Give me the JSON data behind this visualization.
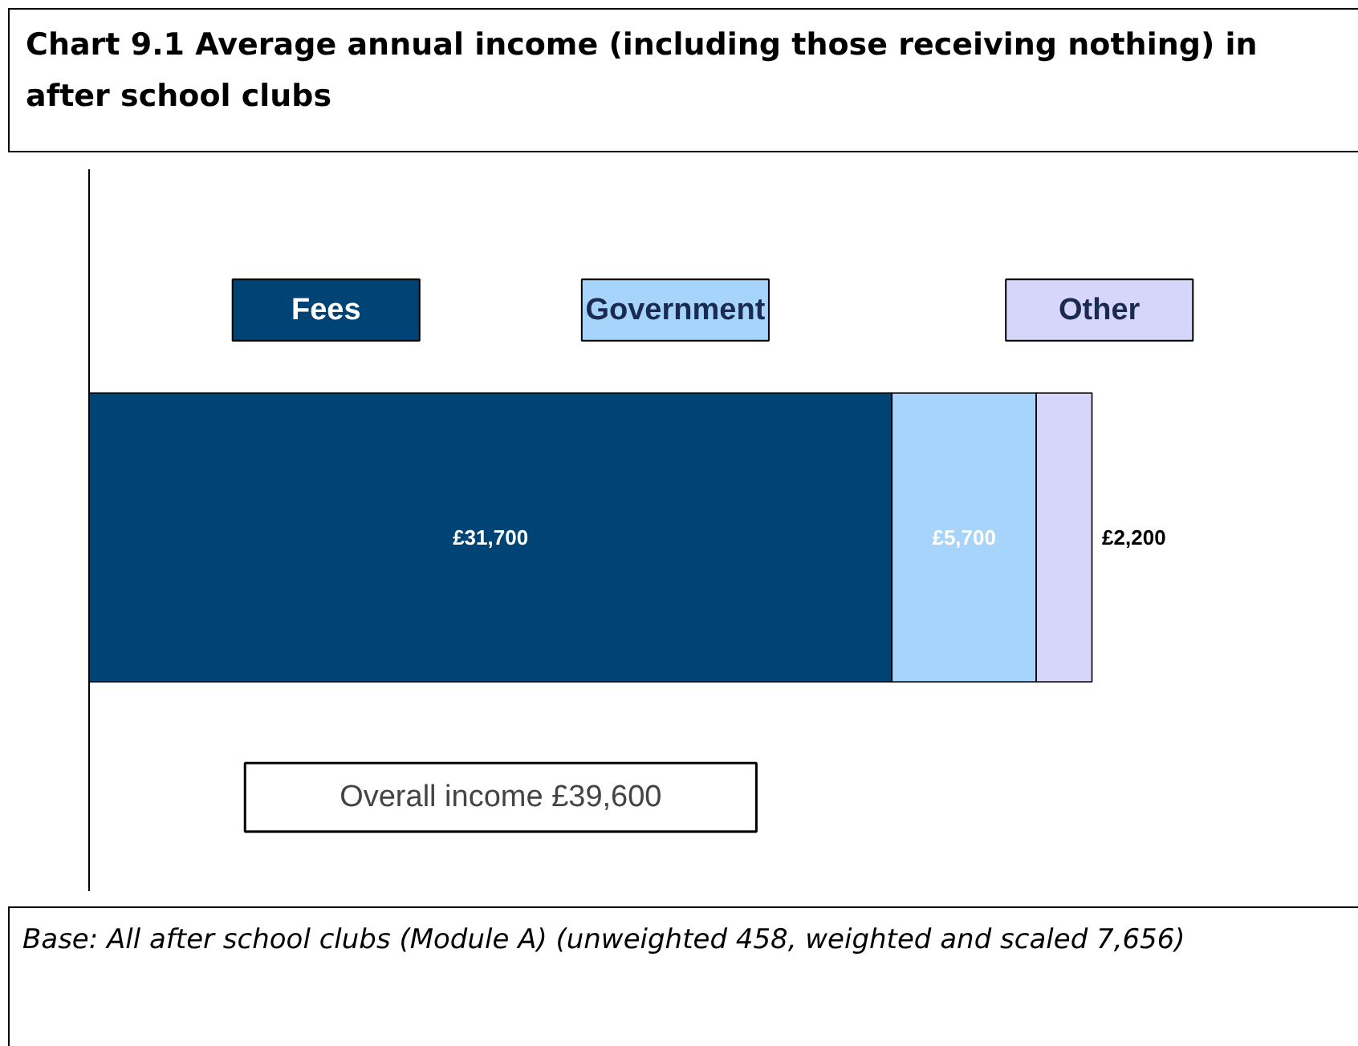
{
  "chart_data": {
    "type": "bar",
    "orientation": "horizontal",
    "stacked": true,
    "title": "Chart 9.1 Average annual income (including those receiving nothing) in after school clubs",
    "categories": [
      null
    ],
    "series": [
      {
        "name": "Fees",
        "color": "#004375",
        "values": [
          31700
        ],
        "value_labels": [
          "£31,700"
        ]
      },
      {
        "name": "Government",
        "color": "#a6d4fb",
        "values": [
          5700
        ],
        "value_labels": [
          "£5,700"
        ]
      },
      {
        "name": "Other",
        "color": "#d6d6fb",
        "values": [
          2200
        ],
        "value_labels": [
          "£2,200"
        ]
      }
    ],
    "legend": "top",
    "annotations": [
      "Overall income £39,600",
      "Base: All after school clubs (Module A) (unweighted 458, weighted and scaled 7,656)"
    ]
  }
}
